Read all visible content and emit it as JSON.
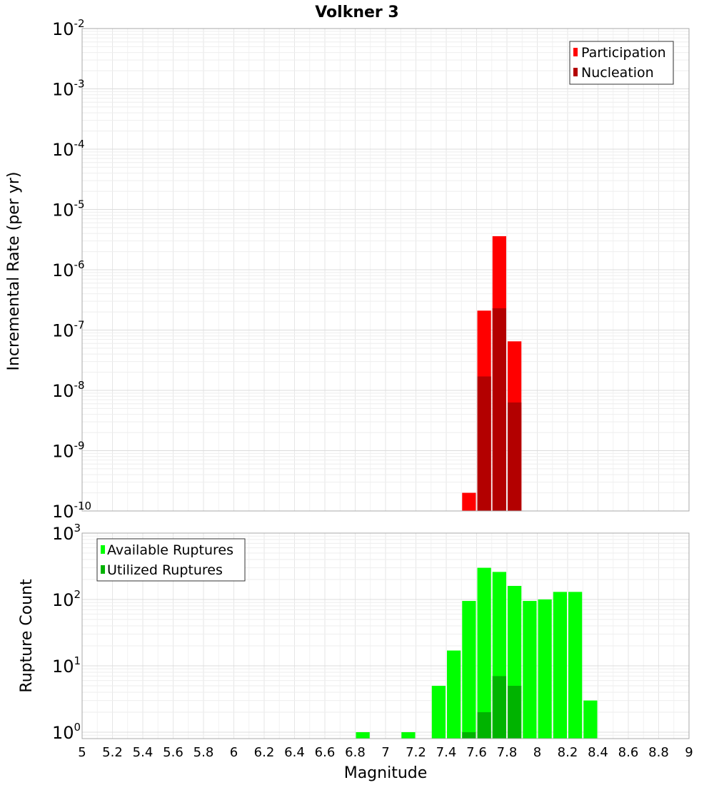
{
  "chart_data": [
    {
      "type": "bar",
      "title": "Volkner 3",
      "ylabel": "Incremental Rate (per yr)",
      "xlabel": "",
      "log_y": true,
      "xlim": [
        5,
        9
      ],
      "ylim": [
        1e-10,
        0.01
      ],
      "y_ticks": [
        {
          "base": "10",
          "exp": "-2",
          "value": 0.01
        },
        {
          "base": "10",
          "exp": "-3",
          "value": 0.001
        },
        {
          "base": "10",
          "exp": "-4",
          "value": 0.0001
        },
        {
          "base": "10",
          "exp": "-5",
          "value": 1e-05
        },
        {
          "base": "10",
          "exp": "-6",
          "value": 1e-06
        },
        {
          "base": "10",
          "exp": "-7",
          "value": 1e-07
        },
        {
          "base": "10",
          "exp": "-8",
          "value": 1e-08
        },
        {
          "base": "10",
          "exp": "-9",
          "value": 1e-09
        },
        {
          "base": "10",
          "exp": "-10",
          "value": 1e-10
        }
      ],
      "grid": true,
      "legend_position": "top-right",
      "bin_width": 0.1,
      "series": [
        {
          "name": "Participation",
          "color": "#ff0000",
          "points": [
            [
              7.55,
              2e-10
            ],
            [
              7.65,
              2.1e-07
            ],
            [
              7.75,
              3.6e-06
            ],
            [
              7.85,
              6.5e-08
            ]
          ]
        },
        {
          "name": "Nucleation",
          "color": "#b30000",
          "points": [
            [
              7.65,
              1.7e-08
            ],
            [
              7.75,
              2.3e-07
            ],
            [
              7.85,
              6.3e-09
            ]
          ]
        }
      ]
    },
    {
      "type": "bar",
      "title": "",
      "ylabel": "Rupture Count",
      "xlabel": "Magnitude",
      "log_y": true,
      "xlim": [
        5,
        9
      ],
      "ylim": [
        0.8,
        1000
      ],
      "y_ticks": [
        {
          "base": "10",
          "exp": "3",
          "value": 1000
        },
        {
          "base": "10",
          "exp": "2",
          "value": 100
        },
        {
          "base": "10",
          "exp": "1",
          "value": 10
        },
        {
          "base": "10",
          "exp": "0",
          "value": 1
        }
      ],
      "x_ticks": [
        "5",
        "5.2",
        "5.4",
        "5.6",
        "5.8",
        "6",
        "6.2",
        "6.4",
        "6.6",
        "6.8",
        "7",
        "7.2",
        "7.4",
        "7.6",
        "7.8",
        "8",
        "8.2",
        "8.4",
        "8.6",
        "8.8",
        "9"
      ],
      "grid": true,
      "legend_position": "top-left",
      "bin_width": 0.1,
      "series": [
        {
          "name": "Available Ruptures",
          "color": "#00ff00",
          "points": [
            [
              6.85,
              1
            ],
            [
              7.15,
              1
            ],
            [
              7.35,
              5
            ],
            [
              7.45,
              17
            ],
            [
              7.55,
              95
            ],
            [
              7.65,
              300
            ],
            [
              7.75,
              260
            ],
            [
              7.85,
              160
            ],
            [
              7.95,
              95
            ],
            [
              8.05,
              100
            ],
            [
              8.15,
              130
            ],
            [
              8.25,
              130
            ],
            [
              8.35,
              3
            ]
          ]
        },
        {
          "name": "Utilized Ruptures",
          "color": "#00b300",
          "points": [
            [
              7.55,
              1
            ],
            [
              7.65,
              2
            ],
            [
              7.75,
              7
            ],
            [
              7.85,
              5
            ]
          ]
        }
      ]
    }
  ]
}
